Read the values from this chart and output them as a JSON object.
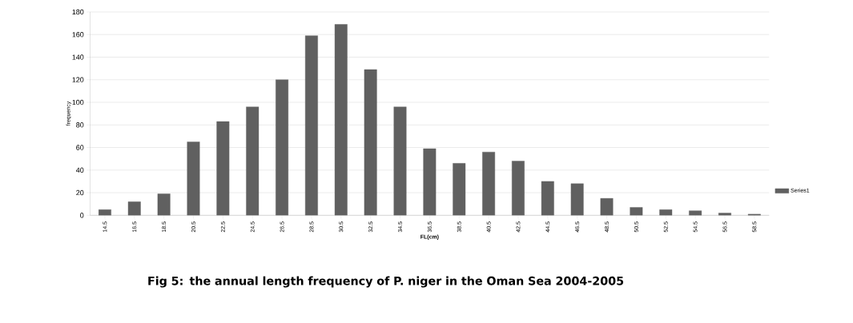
{
  "chart_data": {
    "type": "bar",
    "xlabel": "FL(cm)",
    "ylabel": "frequency",
    "annotations": [
      "Fig 5: the annual length frequency of P. niger in the Oman Sea 2004-2005"
    ],
    "categories": [
      "14.5",
      "16.5",
      "18.5",
      "20.5",
      "22.5",
      "24.5",
      "26.5",
      "28.5",
      "30.5",
      "32.5",
      "34.5",
      "36.5",
      "38.5",
      "40.5",
      "42.5",
      "44.5",
      "46.5",
      "48.5",
      "50.5",
      "52.5",
      "54.5",
      "56.5",
      "58.5"
    ],
    "series": [
      {
        "name": "Series1",
        "color": "#606060",
        "values": [
          5,
          12,
          19,
          65,
          83,
          96,
          120,
          159,
          169,
          129,
          96,
          59,
          46,
          56,
          48,
          30,
          28,
          15,
          7,
          5,
          4,
          2,
          1
        ]
      }
    ],
    "ylim": [
      0,
      180
    ],
    "yticks": [
      0,
      20,
      40,
      60,
      80,
      100,
      120,
      140,
      160,
      180
    ],
    "grid": "y",
    "legend": "right"
  }
}
